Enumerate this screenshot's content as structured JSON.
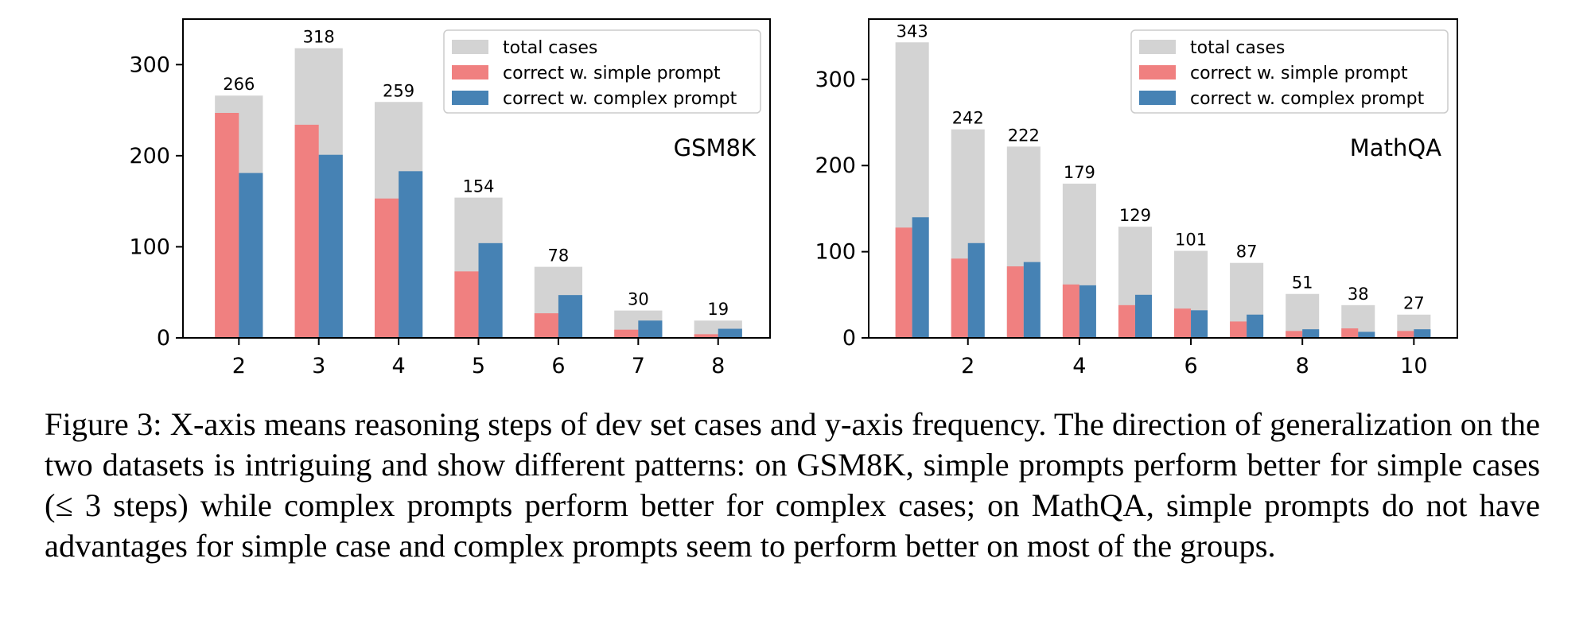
{
  "chart_data": [
    {
      "type": "bar",
      "panel_label": "GSM8K",
      "x": [
        2,
        3,
        4,
        5,
        6,
        7,
        8
      ],
      "x_ticks": [
        2,
        3,
        4,
        5,
        6,
        7,
        8
      ],
      "ylim": [
        0,
        350
      ],
      "y_ticks": [
        0,
        100,
        200,
        300
      ],
      "legend_position": "top-right",
      "series": [
        {
          "name": "total cases",
          "color": "#d3d3d3",
          "values": [
            266,
            318,
            259,
            154,
            78,
            30,
            19
          ]
        },
        {
          "name": "correct w. simple prompt",
          "color": "#f08080",
          "values": [
            247,
            234,
            153,
            73,
            27,
            9,
            4
          ]
        },
        {
          "name": "correct w. complex prompt",
          "color": "#4682b4",
          "values": [
            181,
            201,
            183,
            104,
            47,
            19,
            10
          ]
        }
      ],
      "data_labels": [
        "266",
        "318",
        "259",
        "154",
        "78",
        "30",
        "19"
      ]
    },
    {
      "type": "bar",
      "panel_label": "MathQA",
      "x": [
        1,
        2,
        3,
        4,
        5,
        6,
        7,
        8,
        9,
        10
      ],
      "x_ticks": [
        2,
        4,
        6,
        8,
        10
      ],
      "ylim": [
        0,
        370
      ],
      "y_ticks": [
        0,
        100,
        200,
        300
      ],
      "legend_position": "top-right",
      "series": [
        {
          "name": "total cases",
          "color": "#d3d3d3",
          "values": [
            343,
            242,
            222,
            179,
            129,
            101,
            87,
            51,
            38,
            27
          ]
        },
        {
          "name": "correct w. simple prompt",
          "color": "#f08080",
          "values": [
            128,
            92,
            83,
            62,
            38,
            34,
            19,
            8,
            11,
            8
          ]
        },
        {
          "name": "correct w. complex prompt",
          "color": "#4682b4",
          "values": [
            140,
            110,
            88,
            61,
            50,
            32,
            27,
            10,
            7,
            10
          ]
        }
      ],
      "data_labels": [
        "343",
        "242",
        "222",
        "179",
        "129",
        "101",
        "87",
        "51",
        "38",
        "27"
      ]
    }
  ],
  "caption": "Figure 3: X-axis means reasoning steps of dev set cases and y-axis frequency. The direction of generalization on the two datasets is intriguing and show different patterns: on GSM8K, simple prompts perform better for simple cases (≤ 3 steps) while complex prompts perform better for complex cases; on MathQA, simple prompts do not have advantages for simple case and complex prompts seem to perform better on most of the groups."
}
